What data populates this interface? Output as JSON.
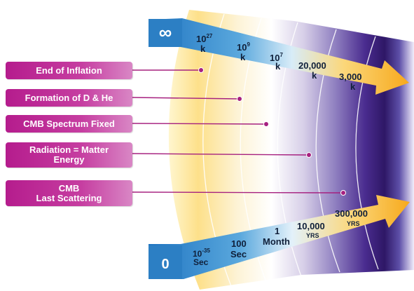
{
  "top_arrow": {
    "start_symbol": "∞",
    "temperatures": [
      {
        "base": "10",
        "exp": "27",
        "unit": "k"
      },
      {
        "base": "10",
        "exp": "9",
        "unit": "k"
      },
      {
        "base": "10",
        "exp": "7",
        "unit": "k"
      },
      {
        "base": "20,000",
        "exp": "",
        "unit": "k"
      },
      {
        "base": "3,000",
        "exp": "",
        "unit": "k"
      }
    ]
  },
  "bottom_arrow": {
    "start_symbol": "0",
    "times": [
      {
        "base": "10",
        "exp": "-35",
        "unit": "Sec"
      },
      {
        "base": "100",
        "exp": "",
        "unit": "Sec"
      },
      {
        "base": "1",
        "exp": "",
        "unit": "Month"
      },
      {
        "base": "10,000",
        "exp": "",
        "unit": "YRS"
      },
      {
        "base": "300,000",
        "exp": "",
        "unit": "YRS"
      }
    ]
  },
  "events": [
    {
      "line1": "End of Inflation",
      "line2": ""
    },
    {
      "line1": "Formation of D & He",
      "line2": ""
    },
    {
      "line1": "CMB  Spectrum Fixed",
      "line2": ""
    },
    {
      "line1": "Radiation = Matter",
      "line2": "Energy"
    },
    {
      "line1": "CMB",
      "line2": "Last Scattering"
    }
  ],
  "colors": {
    "event_magenta": "#b51c8d",
    "arrow_blue": "#2f86c8",
    "arrow_yellow": "#fbb62a",
    "band_yellow": "#fde6a0",
    "band_purple": "#3a1f7a",
    "text_dark": "#1a1a2e"
  }
}
